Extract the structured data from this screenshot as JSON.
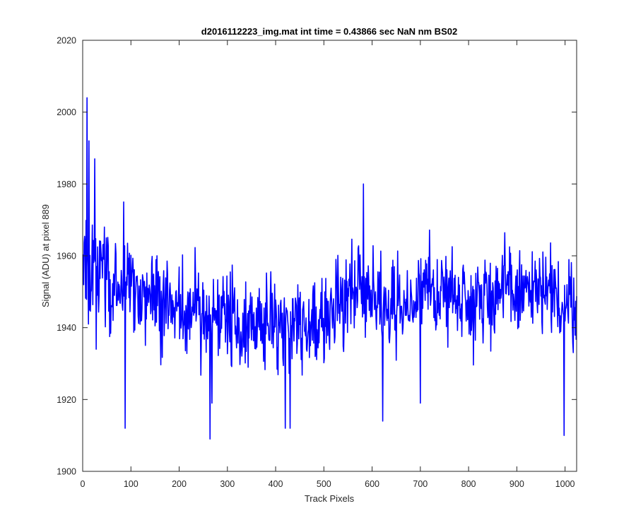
{
  "chart_data": {
    "type": "line",
    "title": "d2016112223_img.mat int time = 0.43866 sec  NaN nm BS02",
    "xlabel": "Track Pixels",
    "ylabel": "Signal (ADU) at pixel 889",
    "xlim": [
      0,
      1024
    ],
    "ylim": [
      1900,
      2020
    ],
    "xticks": [
      0,
      100,
      200,
      300,
      400,
      500,
      600,
      700,
      800,
      900,
      1000
    ],
    "yticks": [
      1900,
      1920,
      1940,
      1960,
      1980,
      2000,
      2020
    ],
    "grid": false,
    "legend": "none",
    "line_color": "#0000ff",
    "series": [
      {
        "x": [
          0,
          10,
          20,
          30,
          40,
          50,
          60,
          70,
          80,
          90,
          100,
          110,
          120,
          130,
          140,
          150,
          160,
          170,
          180,
          190,
          200,
          210,
          220,
          230,
          240,
          250,
          260,
          270,
          280,
          290,
          300,
          310,
          320,
          330,
          340,
          350,
          360,
          370,
          380,
          390,
          400,
          410,
          420,
          430,
          440,
          450,
          460,
          470,
          480,
          490,
          500,
          510,
          520,
          530,
          540,
          550,
          560,
          570,
          580,
          590,
          600,
          610,
          620,
          630,
          640,
          650,
          660,
          670,
          680,
          690,
          700,
          710,
          720,
          730,
          740,
          750,
          760,
          770,
          780,
          790,
          800,
          810,
          820,
          830,
          840,
          850,
          860,
          870,
          880,
          890,
          900,
          910,
          920,
          930,
          940,
          950,
          960,
          970,
          980,
          990,
          1000,
          1010,
          1020
        ],
        "values": [
          1955,
          1958,
          1954,
          1956,
          1957,
          1956,
          1953,
          1955,
          1952,
          1950,
          1952,
          1951,
          1949,
          1950,
          1948,
          1949,
          1947,
          1948,
          1946,
          1947,
          1947,
          1946,
          1945,
          1946,
          1944,
          1945,
          1943,
          1944,
          1942,
          1943,
          1943,
          1942,
          1942,
          1941,
          1942,
          1941,
          1940,
          1941,
          1940,
          1940,
          1941,
          1940,
          1941,
          1940,
          1941,
          1940,
          1941,
          1942,
          1943,
          1944,
          1945,
          1946,
          1947,
          1947,
          1948,
          1949,
          1951,
          1952,
          1951,
          1950,
          1949,
          1948,
          1947,
          1946,
          1946,
          1945,
          1945,
          1946,
          1946,
          1947,
          1948,
          1949,
          1950,
          1950,
          1950,
          1950,
          1950,
          1950,
          1949,
          1949,
          1948,
          1948,
          1949,
          1949,
          1949,
          1949,
          1950,
          1950,
          1950,
          1950,
          1950,
          1950,
          1950,
          1950,
          1949,
          1949,
          1948,
          1948,
          1948,
          1948,
          1947,
          1947,
          1947
        ]
      }
    ],
    "spikes": [
      {
        "x": 9,
        "y": 2004
      },
      {
        "x": 13,
        "y": 1992
      },
      {
        "x": 25,
        "y": 1987
      },
      {
        "x": 28,
        "y": 1934
      },
      {
        "x": 85,
        "y": 1975
      },
      {
        "x": 88,
        "y": 1912
      },
      {
        "x": 264,
        "y": 1909
      },
      {
        "x": 268,
        "y": 1919
      },
      {
        "x": 420,
        "y": 1912
      },
      {
        "x": 430,
        "y": 1912
      },
      {
        "x": 582,
        "y": 1980
      },
      {
        "x": 622,
        "y": 1914
      },
      {
        "x": 700,
        "y": 1919
      },
      {
        "x": 998,
        "y": 1910
      }
    ]
  }
}
